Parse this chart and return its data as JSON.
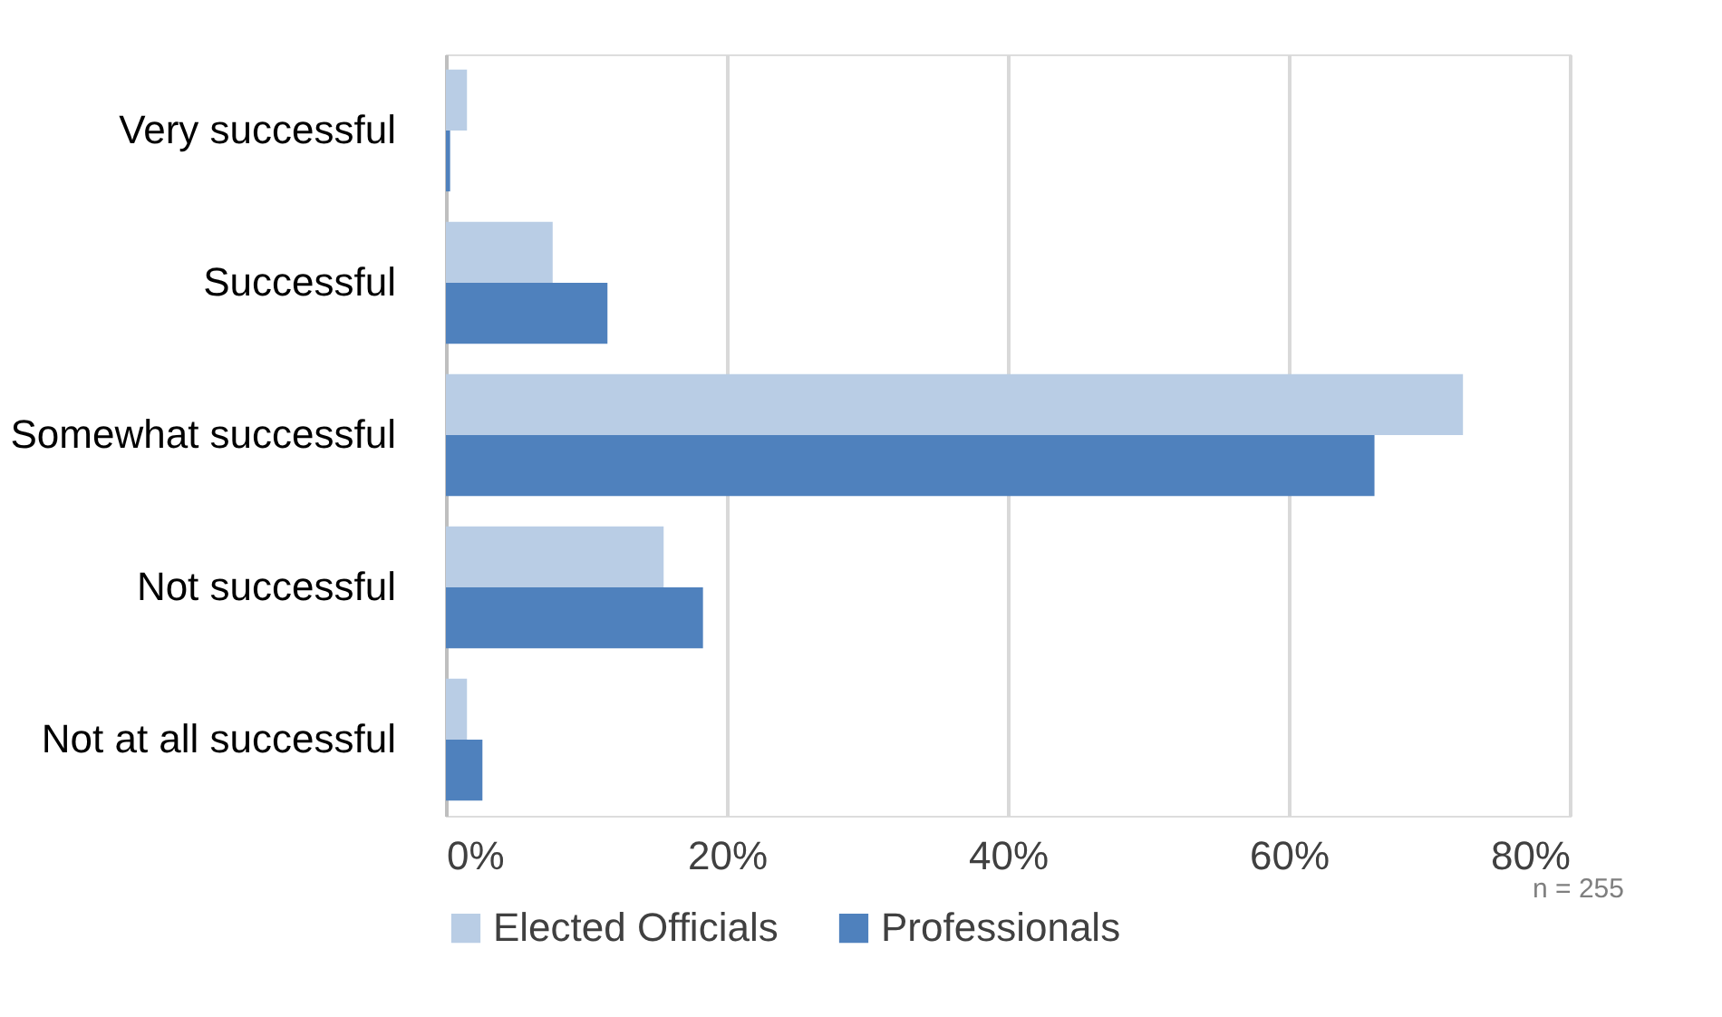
{
  "chart_data": {
    "type": "bar",
    "orientation": "horizontal",
    "categories": [
      "Very successful",
      "Successful",
      "Somewhat successful",
      "Not successful",
      "Not at all successful"
    ],
    "series": [
      {
        "name": "Elected Officials",
        "color": "#b9cde5",
        "values": [
          1.5,
          7.6,
          72.4,
          15.5,
          1.5
        ]
      },
      {
        "name": "Professionals",
        "color": "#4f81bd",
        "values": [
          0.3,
          11.5,
          66.1,
          18.3,
          2.6
        ]
      }
    ],
    "xlim": [
      0,
      80
    ],
    "xticks": [
      {
        "value": 0,
        "label": "0%"
      },
      {
        "value": 20,
        "label": "20%"
      },
      {
        "value": 40,
        "label": "40%"
      },
      {
        "value": 60,
        "label": "60%"
      },
      {
        "value": 80,
        "label": "80%"
      }
    ],
    "grid": "x",
    "legend": "bottom",
    "annotations": [
      "n = 255"
    ]
  }
}
